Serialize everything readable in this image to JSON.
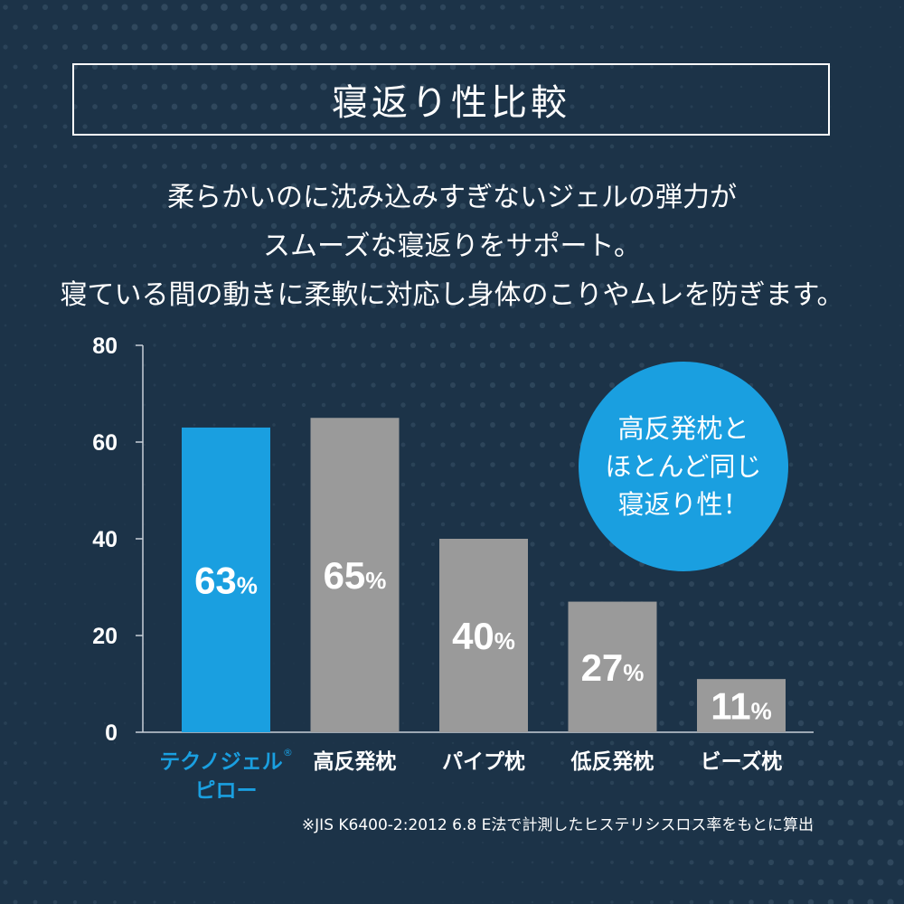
{
  "title": "寝返り性比較",
  "description_lines": [
    "柔らかいのに沈み込みすぎないジェルの弾力が",
    "スムーズな寝返りをサポート。",
    "寝ている間の動きに柔軟に対応し身体のこりやムレを防ぎます。"
  ],
  "callout_lines": [
    "高反発枕と",
    "ほとんど同じ",
    "寝返り性！"
  ],
  "footnote": "※JIS K6400-2:2012 6.8 E法で計測したヒステリシスロス率をもとに算出",
  "colors": {
    "background": "#1c3348",
    "highlight": "#1a9fe0",
    "bar_gray": "#9a9a9a",
    "axis": "#c8d0d8"
  },
  "chart_data": {
    "type": "bar",
    "title": "寝返り性比較",
    "xlabel": "",
    "ylabel": "",
    "ylim": [
      0,
      80
    ],
    "yticks": [
      0,
      20,
      40,
      60,
      80
    ],
    "grid": false,
    "value_suffix": "%",
    "categories": [
      {
        "label": "テクノジェル",
        "mark": "®",
        "sublabel": "ピロー",
        "highlight": true
      },
      {
        "label": "高反発枕",
        "highlight": false
      },
      {
        "label": "パイプ枕",
        "highlight": false
      },
      {
        "label": "低反発枕",
        "highlight": false
      },
      {
        "label": "ビーズ枕",
        "highlight": false
      }
    ],
    "values": [
      63,
      65,
      40,
      27,
      11
    ]
  }
}
